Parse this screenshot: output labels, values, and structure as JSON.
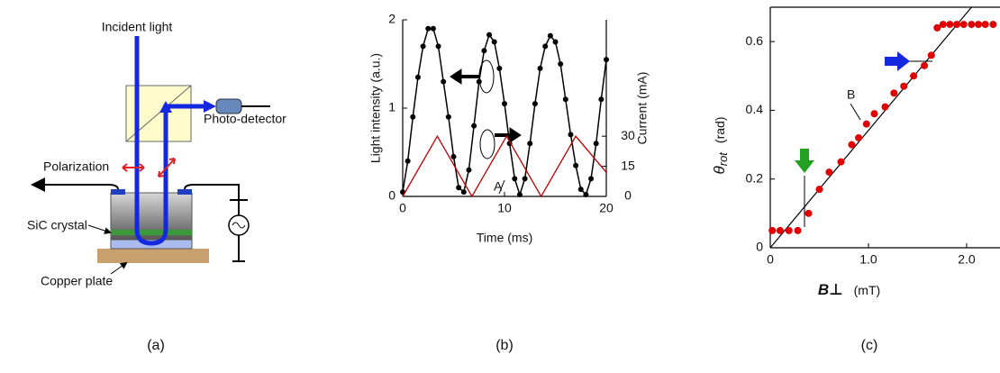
{
  "diagram": {
    "labels": {
      "incident": "Incident light",
      "detector": "Photo-detector",
      "polarization": "Polarization",
      "crystal": "SiC crystal",
      "plate": "Copper plate"
    },
    "panel_label": "(a)"
  },
  "chart_data": [
    {
      "type": "line",
      "panel_label": "(b)",
      "xlabel": "Time (ms)",
      "ylabel": "Light intensity (a.u.)",
      "y2label": "Current (mA)",
      "annotation": "A",
      "xlim": [
        0,
        20
      ],
      "ylim": [
        0,
        2
      ],
      "y2lim": [
        0,
        88
      ],
      "xticks": [
        0,
        10,
        20
      ],
      "yticks": [
        0,
        1,
        2
      ],
      "y2ticks": [
        0,
        15,
        30
      ],
      "series": [
        {
          "color": "#000000",
          "marker": "circle",
          "x": [
            0,
            0.5,
            1,
            1.5,
            2,
            2.5,
            3,
            3.5,
            4,
            4.5,
            5,
            5.5,
            6,
            6.5,
            7,
            7.5,
            8,
            8.5,
            9,
            9.5,
            10,
            10.5,
            11,
            11.5,
            12,
            12.5,
            13,
            13.5,
            14,
            14.5,
            15,
            15.5,
            16,
            16.5,
            17,
            17.5,
            18,
            18.5,
            19,
            19.5,
            20
          ],
          "values": [
            0.05,
            0.4,
            0.9,
            1.35,
            1.7,
            1.9,
            1.9,
            1.7,
            1.3,
            0.9,
            0.45,
            0.1,
            0.05,
            0.3,
            0.8,
            1.3,
            1.65,
            1.83,
            1.75,
            1.45,
            1.05,
            0.6,
            0.2,
            0.02,
            0.2,
            0.6,
            1.05,
            1.45,
            1.7,
            1.82,
            1.75,
            1.5,
            1.1,
            0.7,
            0.35,
            0.08,
            0.02,
            0.2,
            0.6,
            1.1,
            1.55
          ]
        },
        {
          "color": "#c00000",
          "axis": "y2",
          "x": [
            0,
            3.4,
            6.8,
            10.2,
            13.6,
            17,
            20
          ],
          "values": [
            0,
            30,
            0,
            30,
            0,
            30,
            12
          ]
        }
      ]
    },
    {
      "type": "scatter",
      "panel_label": "(c)",
      "xlabel": "B⊥",
      "xlabel_unit": "(mT)",
      "ylabel": "θ",
      "ylabel_sub": "rot",
      "ylabel_unit": "(rad)",
      "annotation": "B",
      "xlim": [
        0,
        2.34
      ],
      "ylim": [
        0,
        0.7
      ],
      "xticks": [
        0,
        {
          "value": 1,
          "label": "1.0"
        },
        {
          "value": 2,
          "label": "2.0"
        }
      ],
      "yticks": [
        0,
        0.2,
        0.4,
        0.6
      ],
      "series": [
        {
          "color": "#e00000",
          "x": [
            0.02,
            0.1,
            0.19,
            0.28,
            0.39,
            0.5,
            0.6,
            0.72,
            0.83,
            0.9,
            0.98,
            1.06,
            1.17,
            1.26,
            1.36,
            1.46,
            1.57,
            1.64,
            1.7,
            1.76,
            1.83,
            1.9,
            1.97,
            2.05,
            2.12,
            2.19,
            2.27
          ],
          "values": [
            0.05,
            0.05,
            0.05,
            0.05,
            0.1,
            0.17,
            0.22,
            0.25,
            0.3,
            0.32,
            0.36,
            0.39,
            0.41,
            0.45,
            0.47,
            0.5,
            0.53,
            0.56,
            0.64,
            0.65,
            0.65,
            0.65,
            0.65,
            0.65,
            0.65,
            0.65,
            0.65
          ]
        }
      ],
      "fit_line": {
        "color": "#000000",
        "x": [
          0,
          2.05
        ],
        "values": [
          0,
          0.7
        ]
      }
    }
  ]
}
